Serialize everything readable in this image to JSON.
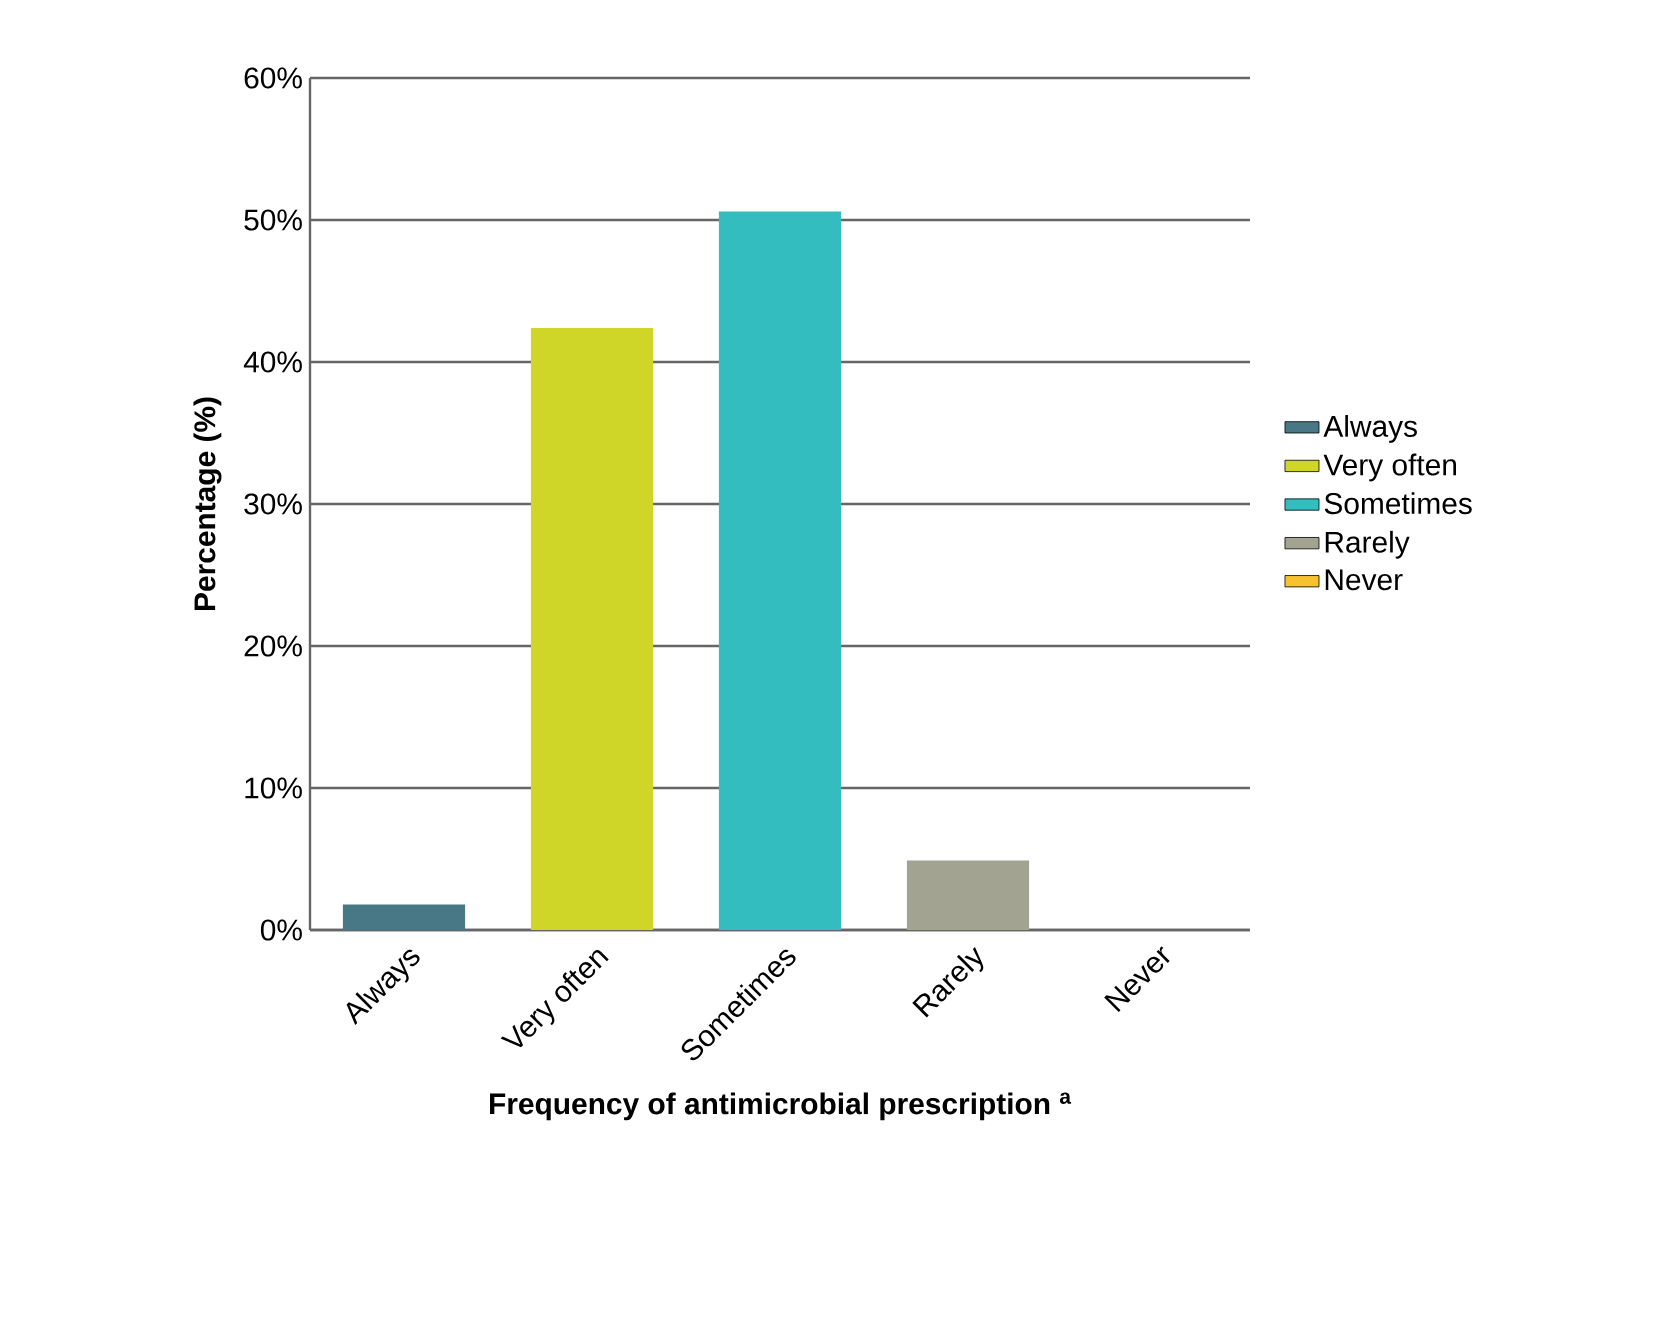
{
  "chart_data": {
    "type": "bar",
    "xlabel": "Frequency of antimicrobial prescription $^{a}$",
    "ylabel": "Percentage (%)",
    "categories": [
      "Always",
      "Very often",
      "Sometimes",
      "Rarely",
      "Never"
    ],
    "series": [
      {
        "name": "Always",
        "color": "#487885",
        "values": [
          1.8,
          null,
          null,
          null,
          null
        ]
      },
      {
        "name": "Very often",
        "color": "#cfd628",
        "values": [
          null,
          42.4,
          null,
          null,
          null
        ]
      },
      {
        "name": "Sometimes",
        "color": "#33bdbf",
        "values": [
          null,
          null,
          50.6,
          null,
          null
        ]
      },
      {
        "name": "Rarely",
        "color": "#a2a391",
        "values": [
          null,
          null,
          null,
          4.9,
          null
        ]
      },
      {
        "name": "Never",
        "color": "#f7c230",
        "values": [
          null,
          null,
          null,
          null,
          0
        ]
      }
    ],
    "ylim": [
      0,
      60
    ],
    "yticks": [
      {
        "value": 0,
        "label": "0%"
      },
      {
        "value": 10,
        "label": "10%"
      },
      {
        "value": 20,
        "label": "20%"
      },
      {
        "value": 30,
        "label": "30%"
      },
      {
        "value": 40,
        "label": "40%"
      },
      {
        "value": 50,
        "label": "50%"
      },
      {
        "value": 60,
        "label": "60%"
      }
    ],
    "grid": "y",
    "legend": "right"
  }
}
